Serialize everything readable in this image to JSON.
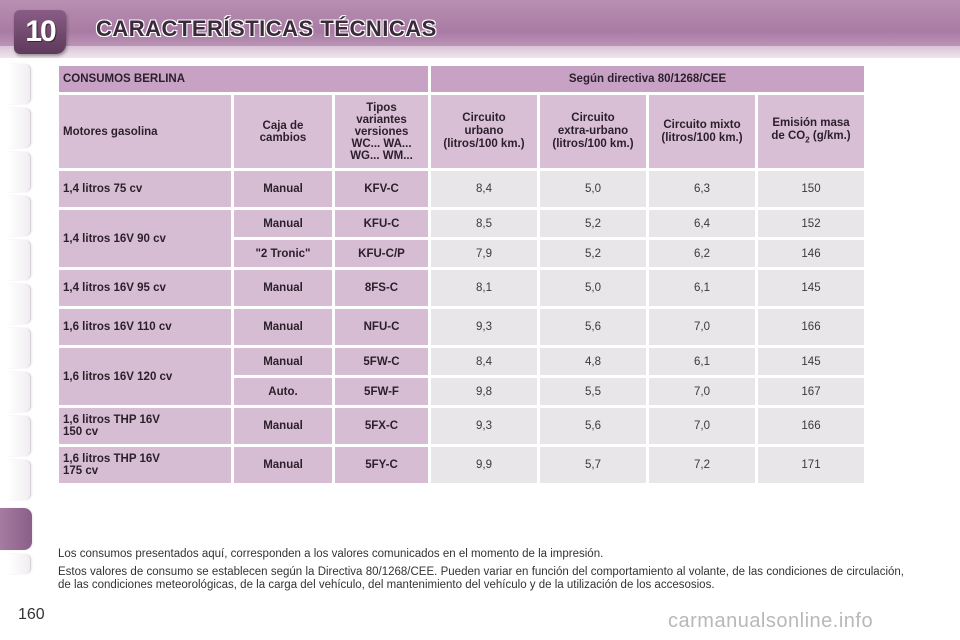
{
  "header": {
    "chapter_number": "10",
    "title": "CARACTERÍSTICAS TÉCNICAS",
    "accent_color": "#a97ba4"
  },
  "table": {
    "title": "CONSUMOS BERLINA",
    "directive": "Según directiva 80/1268/CEE",
    "columns": {
      "engine": "Motores gasolina",
      "gearbox": "Caja de cambios",
      "variants": [
        "Tipos",
        "variantes",
        "versiones",
        "WC... WA...",
        "WG... WM..."
      ],
      "urban": [
        "Circuito",
        "urbano",
        "(litros/100 km.)"
      ],
      "extra_urban": [
        "Circuito",
        "extra-urbano",
        "(litros/100 km.)"
      ],
      "mixed": [
        "Circuito mixto",
        "(litros/100 km.)"
      ],
      "co2": [
        "Emisión masa",
        "de CO",
        "2",
        " (g/km.)"
      ]
    },
    "rows": [
      {
        "engine": "1,4 litros 75 cv",
        "gearbox": "Manual",
        "variant": "KFV-C",
        "urban": "8,4",
        "extra_urban": "5,0",
        "mixed": "6,3",
        "co2": "150"
      },
      {
        "engine": "1,4 litros 16V 90 cv",
        "gearbox": "Manual",
        "variant": "KFU-C",
        "urban": "8,5",
        "extra_urban": "5,2",
        "mixed": "6,4",
        "co2": "152"
      },
      {
        "engine": "",
        "gearbox": "\"2 Tronic\"",
        "variant": "KFU-C/P",
        "urban": "7,9",
        "extra_urban": "5,2",
        "mixed": "6,2",
        "co2": "146"
      },
      {
        "engine": "1,4 litros 16V 95 cv",
        "gearbox": "Manual",
        "variant": "8FS-C",
        "urban": "8,1",
        "extra_urban": "5,0",
        "mixed": "6,1",
        "co2": "145"
      },
      {
        "engine": "1,6 litros 16V 110 cv",
        "gearbox": "Manual",
        "variant": "NFU-C",
        "urban": "9,3",
        "extra_urban": "5,6",
        "mixed": "7,0",
        "co2": "166"
      },
      {
        "engine": "1,6 litros 16V 120 cv",
        "gearbox": "Manual",
        "variant": "5FW-C",
        "urban": "8,4",
        "extra_urban": "4,8",
        "mixed": "6,1",
        "co2": "145"
      },
      {
        "engine": "",
        "gearbox": "Auto.",
        "variant": "5FW-F",
        "urban": "9,8",
        "extra_urban": "5,5",
        "mixed": "7,0",
        "co2": "167"
      },
      {
        "engine": [
          "1,6 litros THP 16V",
          "150 cv"
        ],
        "gearbox": "Manual",
        "variant": "5FX-C",
        "urban": "9,3",
        "extra_urban": "5,6",
        "mixed": "7,0",
        "co2": "166"
      },
      {
        "engine": [
          "1,6 litros THP 16V",
          "175 cv"
        ],
        "gearbox": "Manual",
        "variant": "5FY-C",
        "urban": "9,9",
        "extra_urban": "5,7",
        "mixed": "7,2",
        "co2": "171"
      }
    ]
  },
  "notes": [
    "Los consumos presentados aquí, corresponden a los valores comunicados en el momento de la impresión.",
    "Estos valores de consumo se establecen según la Directiva 80/1268/CEE. Pueden variar en función del comportamiento al volante, de las condiciones de circulación, de las condiciones meteorológicas, de la carga del vehículo, del mantenimiento del vehículo y de la utilización de los accesosios."
  ],
  "page_number": "160",
  "watermark": "carmanualsonline.info"
}
